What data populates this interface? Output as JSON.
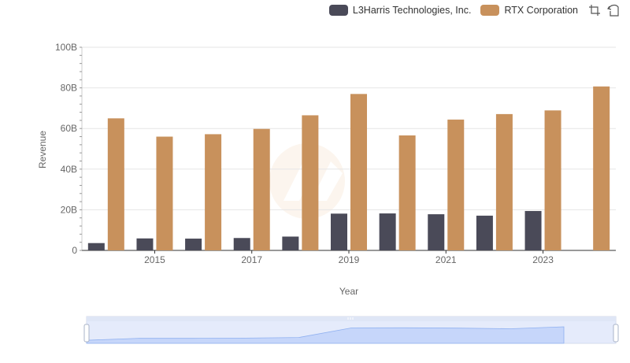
{
  "legend": {
    "items": [
      {
        "label": "L3Harris Technologies, Inc.",
        "color": "#4a4a58"
      },
      {
        "label": "RTX Corporation",
        "color": "#c8915c"
      }
    ],
    "tools": [
      "zoom-icon",
      "restore-icon"
    ]
  },
  "chart_data": {
    "type": "bar",
    "xlabel": "Year",
    "ylabel": "Revenue",
    "x_tick_labels": [
      "2015",
      "2017",
      "2019",
      "2021",
      "2023"
    ],
    "y_tick_labels": [
      "0",
      "20B",
      "40B",
      "60B",
      "80B",
      "100B"
    ],
    "ylim": [
      0,
      100
    ],
    "y_unit": "B",
    "grid": "horizontal",
    "legend_position": "top-right",
    "categories": [
      "2014",
      "2015",
      "2016",
      "2017",
      "2018",
      "2019",
      "2020",
      "2021",
      "2022",
      "2023",
      "2024"
    ],
    "series": [
      {
        "name": "L3Harris Technologies, Inc.",
        "color": "#4a4a58",
        "values": [
          3.6,
          5.9,
          5.8,
          6.1,
          6.8,
          18.1,
          18.2,
          17.8,
          17.1,
          19.4,
          null
        ]
      },
      {
        "name": "RTX Corporation",
        "color": "#c8915c",
        "values": [
          65.0,
          56.0,
          57.2,
          59.8,
          66.5,
          77.0,
          56.6,
          64.4,
          67.1,
          68.9,
          80.7
        ]
      }
    ]
  },
  "data_zoom": {
    "start_percent": 0,
    "end_percent": 100
  }
}
